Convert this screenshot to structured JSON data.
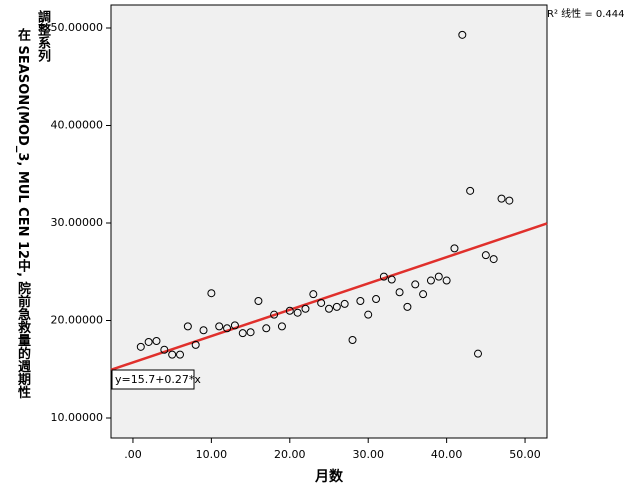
{
  "chart_data": {
    "type": "scatter",
    "x_label": "月数",
    "y_label": [
      "調整系列",
      "在 SEASON(MOD_3, MUL CEN 12中, 院前急救量的週期性"
    ],
    "r2_label": "R² 线性 = 0.444",
    "fit_label": "y=15.7+0.27*x",
    "fit": {
      "intercept": 15.7,
      "slope": 0.27,
      "color": "#e0302c"
    },
    "color": "#000000",
    "background": "#f0f0f0",
    "x": [
      1,
      2,
      3,
      4,
      5,
      6,
      7,
      8,
      9,
      10,
      11,
      12,
      13,
      14,
      15,
      16,
      17,
      18,
      19,
      20,
      21,
      22,
      23,
      24,
      25,
      26,
      27,
      28,
      29,
      30,
      31,
      32,
      33,
      34,
      35,
      36,
      37,
      38,
      39,
      40,
      41,
      42,
      43,
      44,
      45,
      46,
      47,
      48
    ],
    "values": [
      17.3,
      17.8,
      17.9,
      17.0,
      16.5,
      16.5,
      19.4,
      17.5,
      19.0,
      22.8,
      19.4,
      19.2,
      19.5,
      18.7,
      18.8,
      22.0,
      19.2,
      20.6,
      19.4,
      21.0,
      20.8,
      21.2,
      22.7,
      21.8,
      21.2,
      21.4,
      21.7,
      18.0,
      22.0,
      20.6,
      22.2,
      24.5,
      24.2,
      22.9,
      21.4,
      23.7,
      22.7,
      24.1,
      24.5,
      24.1,
      27.4,
      49.3,
      33.3,
      16.6,
      26.7,
      26.3,
      32.5,
      32.3
    ],
    "xlim": [
      -2.8,
      52.8
    ],
    "ylim": [
      7.95,
      52.36
    ],
    "xticks": [
      {
        "value": 0,
        "label": ".00"
      },
      {
        "value": 10,
        "label": "10.00"
      },
      {
        "value": 20,
        "label": "20.00"
      },
      {
        "value": 30,
        "label": "30.00"
      },
      {
        "value": 40,
        "label": "40.00"
      },
      {
        "value": 50,
        "label": "50.00"
      }
    ],
    "yticks": [
      {
        "value": 10,
        "label": "10.00000"
      },
      {
        "value": 20,
        "label": "20.00000"
      },
      {
        "value": 30,
        "label": "30.00000"
      },
      {
        "value": 40,
        "label": "40.00000"
      },
      {
        "value": 50,
        "label": "50.00000"
      }
    ]
  }
}
